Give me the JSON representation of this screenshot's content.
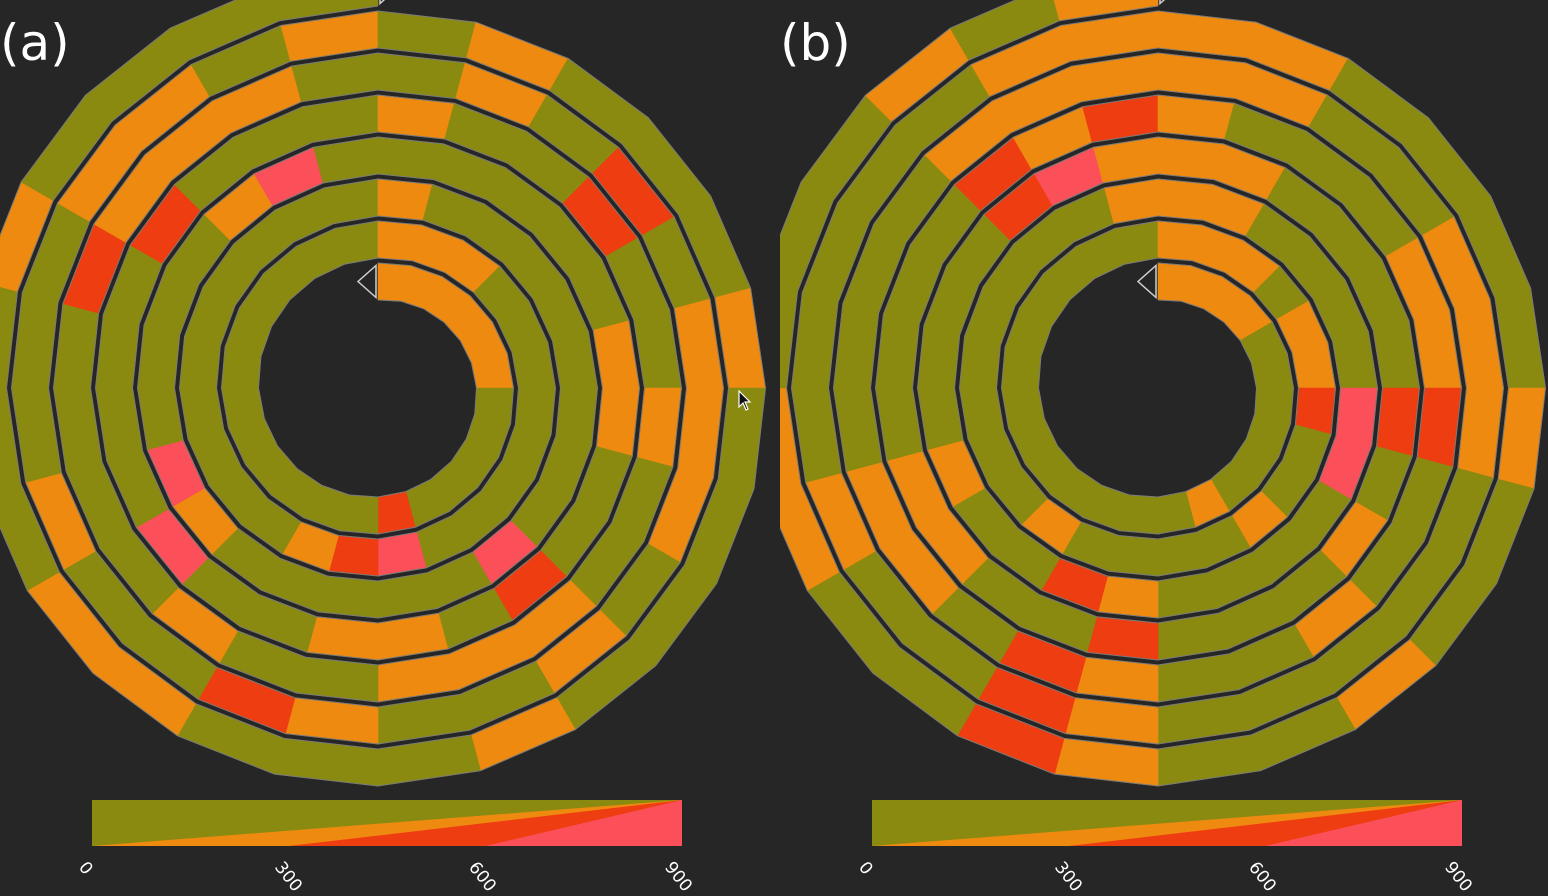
{
  "colors": {
    "background": "#262626",
    "low": "#8a8a10",
    "medium": "#ee8a10",
    "high": "#ee3d10",
    "very_high": "#fb4f5a",
    "outline": "#7a7a7a",
    "marker": "#262626"
  },
  "legend": {
    "ticks": [
      "0",
      "300",
      "600",
      "900"
    ],
    "range": [
      0,
      900
    ]
  },
  "panels": [
    {
      "label": "(a)",
      "turns": 7,
      "segments_per_turn": 24,
      "cells": [
        [
          1,
          1,
          1,
          1,
          1,
          1,
          0,
          0,
          0,
          0,
          0,
          2,
          0,
          0,
          0,
          0,
          0,
          0,
          0,
          0,
          0,
          0,
          0,
          0
        ],
        [
          1,
          1,
          1,
          0,
          0,
          0,
          0,
          0,
          0,
          0,
          0,
          3,
          2,
          1,
          0,
          0,
          0,
          0,
          0,
          0,
          0,
          0,
          0,
          0
        ],
        [
          1,
          0,
          0,
          0,
          0,
          0,
          0,
          0,
          0,
          3,
          0,
          0,
          0,
          0,
          0,
          1,
          3,
          0,
          0,
          0,
          0,
          1,
          3,
          0
        ],
        [
          0,
          0,
          0,
          0,
          0,
          1,
          1,
          0,
          0,
          2,
          0,
          1,
          1,
          0,
          0,
          3,
          0,
          0,
          0,
          0,
          2,
          0,
          0,
          0
        ],
        [
          1,
          0,
          0,
          2,
          0,
          0,
          1,
          0,
          0,
          1,
          1,
          1,
          0,
          0,
          1,
          0,
          0,
          0,
          0,
          2,
          1,
          1,
          1,
          0
        ],
        [
          0,
          1,
          0,
          2,
          0,
          1,
          1,
          1,
          0,
          1,
          0,
          0,
          1,
          2,
          0,
          0,
          1,
          0,
          0,
          0,
          1,
          1,
          0,
          1
        ],
        [
          0,
          1,
          0,
          0,
          0,
          1,
          0,
          0,
          0,
          0,
          1,
          0,
          0,
          0,
          1,
          1,
          0,
          0,
          0,
          1,
          0,
          0,
          0,
          0
        ]
      ]
    },
    {
      "label": "(b)",
      "turns": 7,
      "segments_per_turn": 24,
      "cells": [
        [
          1,
          1,
          1,
          1,
          0,
          0,
          0,
          0,
          0,
          0,
          1,
          0,
          0,
          0,
          0,
          0,
          0,
          0,
          0,
          0,
          0,
          0,
          0,
          0
        ],
        [
          1,
          1,
          1,
          0,
          1,
          1,
          2,
          0,
          0,
          1,
          0,
          0,
          0,
          0,
          1,
          0,
          0,
          0,
          0,
          0,
          0,
          0,
          0,
          1
        ],
        [
          1,
          1,
          0,
          0,
          0,
          0,
          3,
          3,
          0,
          0,
          0,
          0,
          1,
          2,
          0,
          0,
          1,
          0,
          0,
          0,
          0,
          2,
          3,
          1
        ],
        [
          1,
          1,
          0,
          0,
          0,
          0,
          2,
          0,
          1,
          0,
          0,
          0,
          2,
          0,
          0,
          1,
          1,
          0,
          0,
          0,
          0,
          2,
          1,
          2
        ],
        [
          1,
          0,
          0,
          0,
          1,
          1,
          2,
          0,
          0,
          1,
          0,
          0,
          1,
          2,
          0,
          1,
          1,
          0,
          0,
          0,
          0,
          1,
          1,
          1
        ],
        [
          1,
          1,
          0,
          0,
          1,
          1,
          1,
          0,
          0,
          0,
          0,
          0,
          1,
          2,
          0,
          0,
          1,
          0,
          0,
          0,
          0,
          0,
          1,
          1
        ],
        [
          1,
          1,
          0,
          0,
          0,
          0,
          1,
          0,
          0,
          1,
          0,
          0,
          1,
          2,
          0,
          0,
          1,
          1,
          0,
          0,
          0,
          1,
          0,
          1
        ]
      ]
    }
  ]
}
